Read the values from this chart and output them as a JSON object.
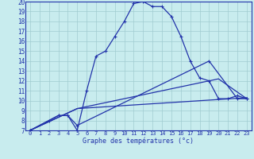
{
  "xlabel": "Graphe des températures (°c)",
  "xlim": [
    -0.5,
    23.5
  ],
  "ylim": [
    7,
    20
  ],
  "yticks": [
    7,
    8,
    9,
    10,
    11,
    12,
    13,
    14,
    15,
    16,
    17,
    18,
    19,
    20
  ],
  "xticks": [
    0,
    1,
    2,
    3,
    4,
    5,
    6,
    7,
    8,
    9,
    10,
    11,
    12,
    13,
    14,
    15,
    16,
    17,
    18,
    19,
    20,
    21,
    22,
    23
  ],
  "background_color": "#c8ecee",
  "grid_color": "#a0ccd0",
  "line_color": "#2233aa",
  "lines": [
    {
      "x": [
        0,
        2,
        3,
        4,
        5,
        6,
        7,
        8,
        9,
        10,
        11,
        12,
        13,
        14,
        15,
        16,
        17,
        18,
        19,
        20,
        21,
        22,
        23
      ],
      "y": [
        7,
        8,
        8.5,
        8.5,
        7,
        11,
        14.5,
        15,
        16.5,
        18,
        19.8,
        20,
        19.5,
        19.5,
        18.5,
        16.5,
        14,
        12.3,
        12,
        10.2,
        10.2,
        10.5,
        10.2
      ],
      "marker": true
    },
    {
      "x": [
        0,
        3,
        4,
        5,
        19,
        22,
        23
      ],
      "y": [
        7,
        8.5,
        8.5,
        7.5,
        14,
        10.2,
        10.2
      ],
      "marker": true
    },
    {
      "x": [
        0,
        5,
        23
      ],
      "y": [
        7,
        9.2,
        10.3
      ],
      "marker": false
    },
    {
      "x": [
        0,
        5,
        20,
        23
      ],
      "y": [
        7,
        9.2,
        12.2,
        10.2
      ],
      "marker": false
    }
  ]
}
